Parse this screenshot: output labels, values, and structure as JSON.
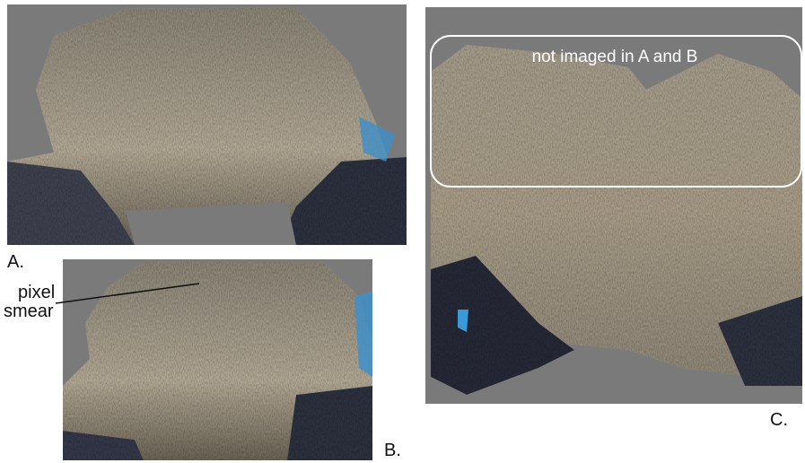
{
  "panels": [
    {
      "label": "A."
    },
    {
      "label": "B."
    },
    {
      "label": "C."
    }
  ],
  "annotations": {
    "pixel_smear": [
      "pixel",
      "smear"
    ],
    "region": "not imaged in A and B"
  }
}
